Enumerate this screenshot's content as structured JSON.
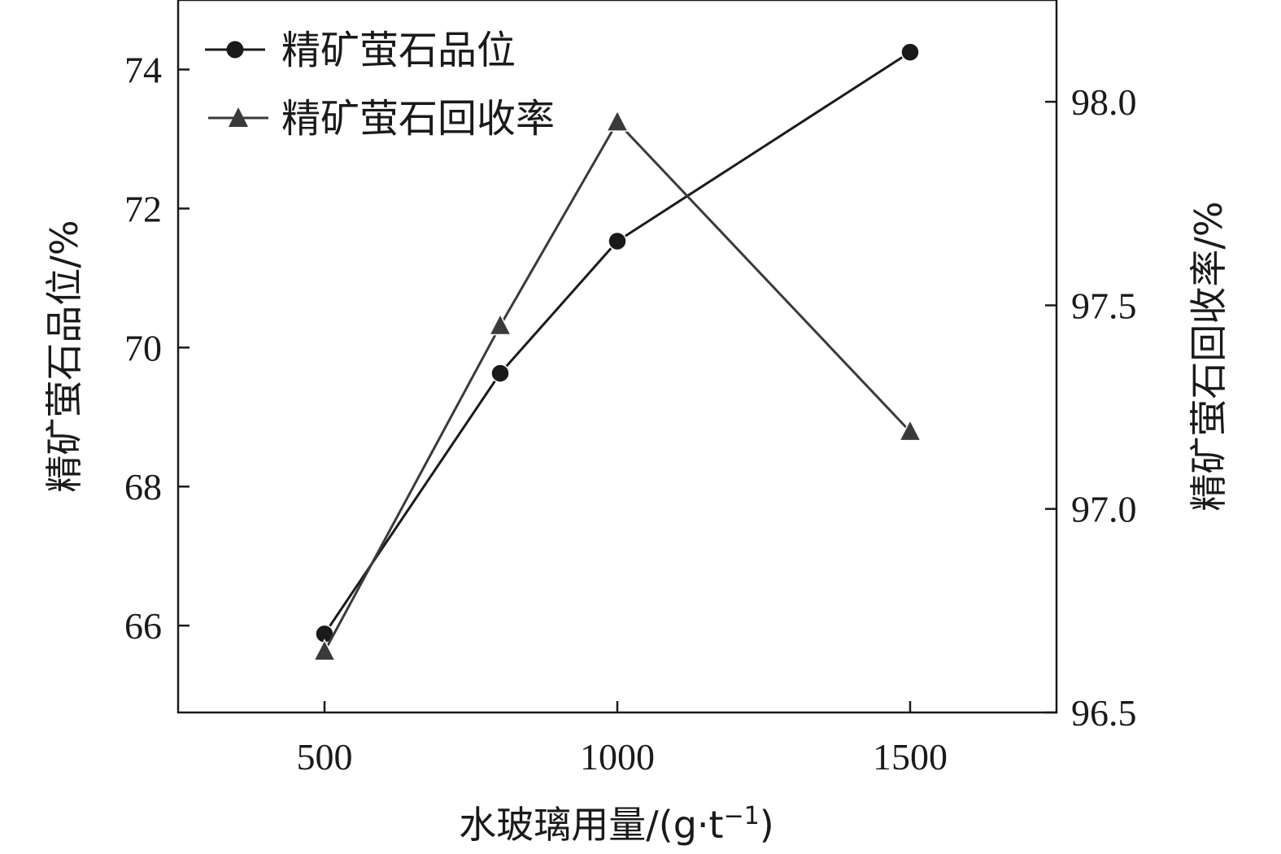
{
  "chart_data": {
    "type": "line",
    "title": "",
    "x": [
      500,
      800,
      1000,
      1500
    ],
    "xlim": [
      250,
      1750
    ],
    "xticks": [
      500,
      1000,
      1500
    ],
    "xlabel": "水玻璃用量/(g·t",
    "xlabel_sup": "−1",
    "xlabel_tail": ")",
    "y_left": {
      "label": "精矿萤石品位/%",
      "lim": [
        64.75,
        75.0
      ],
      "ticks": [
        66,
        68,
        70,
        72,
        74
      ]
    },
    "y_right": {
      "label": "精矿萤石回收率/%",
      "lim": [
        96.5,
        98.25
      ],
      "ticks": [
        96.5,
        97.0,
        97.5,
        98.0
      ],
      "tick_labels": [
        "96.5",
        "97.0",
        "97.5",
        "98.0"
      ]
    },
    "series": [
      {
        "name": "精矿萤石品位",
        "axis": "left",
        "marker": "circle",
        "values": [
          65.88,
          69.63,
          71.53,
          74.25
        ],
        "color": "#1a1a1a"
      },
      {
        "name": "精矿萤石回收率",
        "axis": "right",
        "marker": "triangle",
        "values": [
          96.65,
          97.45,
          97.95,
          97.19
        ],
        "color": "#3a3a3a"
      }
    ],
    "grid": false,
    "legend_position": "top-left"
  }
}
